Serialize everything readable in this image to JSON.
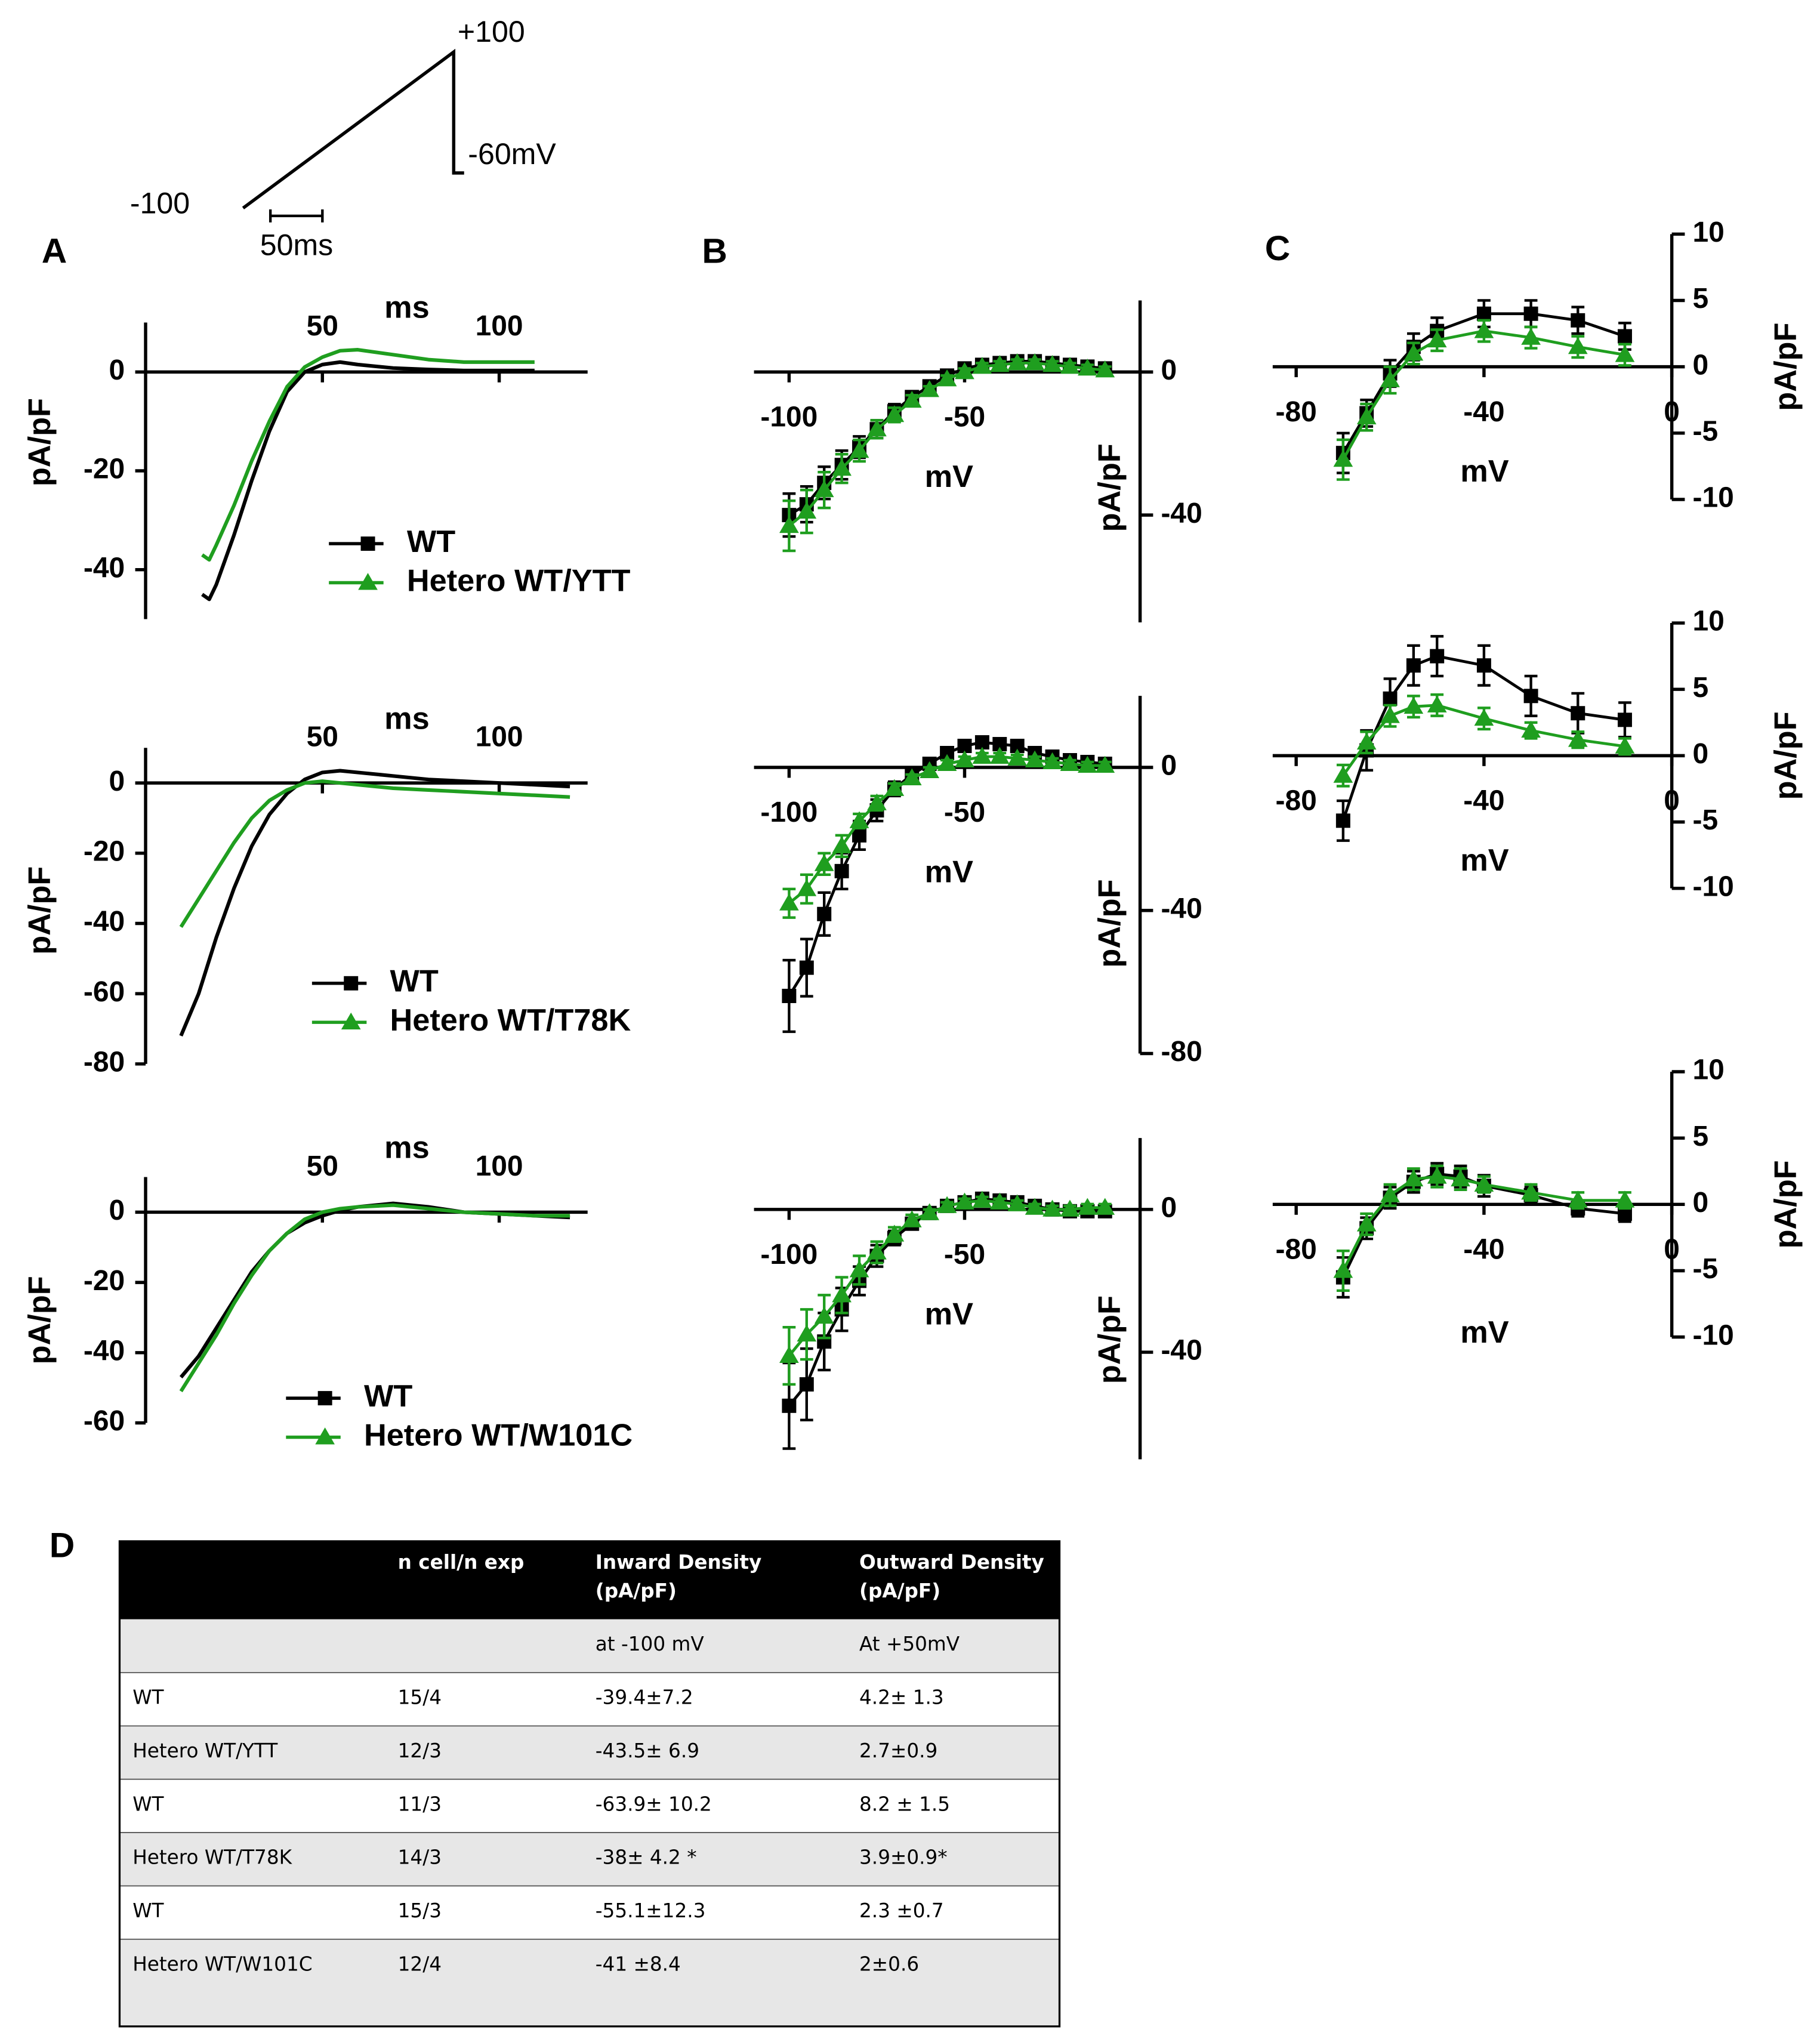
{
  "panels": [
    "A",
    "B",
    "C",
    "D"
  ],
  "protocol": {
    "start_label": "-100",
    "peak_label": "+100",
    "end_label": "-60mV",
    "scale_label": "50ms"
  },
  "chart_data": [
    {
      "type": "line",
      "x_label": "ms",
      "y_label": "pA/pF",
      "xlim": [
        0,
        125
      ],
      "xticks": [
        50,
        100
      ],
      "ylim": [
        -50,
        10
      ],
      "yticks": [
        0,
        -20,
        -40
      ],
      "legend": "lower right",
      "x": [
        16,
        18,
        20,
        25,
        30,
        35,
        40,
        45,
        50,
        55,
        60,
        70,
        80,
        90,
        100,
        110
      ],
      "series": [
        {
          "name": "WT",
          "color": "#000000",
          "marker": "square",
          "values": [
            -45,
            -46,
            -43,
            -33,
            -22,
            -12,
            -4,
            0,
            1.5,
            2,
            1.5,
            0.8,
            0.5,
            0.3,
            0.3,
            0.3
          ]
        },
        {
          "name": "Hetero WT/YTT",
          "color": "#1f9e1f",
          "marker": "triangle",
          "values": [
            -37,
            -38,
            -35,
            -27,
            -18,
            -10,
            -3,
            1,
            3,
            4.3,
            4.5,
            3.5,
            2.5,
            2,
            2,
            2
          ]
        }
      ]
    },
    {
      "type": "line",
      "x_label": "ms",
      "y_label": "pA/pF",
      "xlim": [
        0,
        125
      ],
      "xticks": [
        50,
        100
      ],
      "ylim": [
        -80,
        10
      ],
      "yticks": [
        0,
        -20,
        -40,
        -60,
        -80
      ],
      "legend": "lower right",
      "x": [
        10,
        15,
        20,
        25,
        30,
        35,
        40,
        45,
        50,
        55,
        60,
        70,
        80,
        90,
        100,
        110,
        120
      ],
      "series": [
        {
          "name": "WT",
          "color": "#000000",
          "marker": "square",
          "values": [
            -72,
            -60,
            -44,
            -30,
            -18,
            -9,
            -3,
            1,
            3,
            3.5,
            3,
            2,
            1,
            0.5,
            0,
            -0.5,
            -1
          ]
        },
        {
          "name": "Hetero WT/T78K",
          "color": "#1f9e1f",
          "marker": "triangle",
          "values": [
            -41,
            -33,
            -25,
            -17,
            -10,
            -5,
            -2,
            0,
            0.5,
            0,
            -0.5,
            -1.5,
            -2,
            -2.5,
            -3,
            -3.5,
            -4
          ]
        }
      ]
    },
    {
      "type": "line",
      "x_label": "ms",
      "y_label": "pA/pF",
      "xlim": [
        0,
        125
      ],
      "xticks": [
        50,
        100
      ],
      "ylim": [
        -60,
        10
      ],
      "yticks": [
        0,
        -20,
        -40,
        -60
      ],
      "legend": "lower right",
      "x": [
        10,
        15,
        20,
        25,
        30,
        35,
        40,
        45,
        50,
        55,
        60,
        70,
        80,
        90,
        100,
        110,
        120
      ],
      "series": [
        {
          "name": "WT",
          "color": "#000000",
          "marker": "square",
          "values": [
            -47,
            -41,
            -33,
            -25,
            -17,
            -11,
            -6,
            -3,
            -1,
            0.5,
            1.5,
            2.5,
            1.5,
            0,
            -0.5,
            -1,
            -1.5
          ]
        },
        {
          "name": "Hetero WT/W101C",
          "color": "#1f9e1f",
          "marker": "triangle",
          "values": [
            -51,
            -43,
            -35,
            -26,
            -18,
            -11,
            -6,
            -2,
            0,
            1,
            1.5,
            2,
            1,
            0,
            -0.5,
            -1,
            -1
          ]
        }
      ]
    },
    {
      "type": "line",
      "x_label": "mV",
      "y_label": "pA/pF",
      "y_axis_side": "right",
      "xlim": [
        -110,
        0
      ],
      "xticks": [
        -100,
        -50
      ],
      "ylim": [
        -70,
        20
      ],
      "yticks": [
        0,
        -40
      ],
      "x": [
        -100,
        -95,
        -90,
        -85,
        -80,
        -75,
        -70,
        -65,
        -60,
        -55,
        -50,
        -45,
        -40,
        -35,
        -30,
        -25,
        -20,
        -15,
        -10
      ],
      "series": [
        {
          "name": "WT",
          "color": "#000000",
          "marker": "square",
          "values": [
            -40,
            -37,
            -31,
            -26,
            -21,
            -16,
            -11,
            -7,
            -4,
            -1,
            1,
            2,
            2.5,
            3,
            3,
            2.5,
            2,
            1.5,
            1
          ],
          "errors": [
            6,
            5,
            4.5,
            4,
            3,
            2.5,
            2,
            1.5,
            1.5,
            1,
            1,
            1,
            1,
            1,
            1,
            1,
            1,
            1,
            1
          ]
        },
        {
          "name": "Hetero WT/YTT",
          "color": "#1f9e1f",
          "marker": "triangle",
          "values": [
            -43,
            -39,
            -33,
            -27,
            -22,
            -16,
            -12,
            -8,
            -5,
            -2,
            0,
            1.5,
            2,
            2.5,
            2.5,
            2,
            1.5,
            1,
            0.5
          ],
          "errors": [
            7,
            6,
            5,
            4,
            3,
            2.5,
            2,
            1.5,
            1,
            1,
            1,
            1,
            1,
            1,
            1,
            1,
            1,
            1,
            1
          ]
        }
      ]
    },
    {
      "type": "line",
      "x_label": "mV",
      "y_label": "pA/pF",
      "y_axis_side": "right",
      "xlim": [
        -110,
        0
      ],
      "xticks": [
        -100,
        -50
      ],
      "ylim": [
        -80,
        20
      ],
      "yticks": [
        0,
        -40,
        -80
      ],
      "x": [
        -100,
        -95,
        -90,
        -85,
        -80,
        -75,
        -70,
        -65,
        -60,
        -55,
        -50,
        -45,
        -40,
        -35,
        -30,
        -25,
        -20,
        -15,
        -10
      ],
      "series": [
        {
          "name": "WT",
          "color": "#000000",
          "marker": "square",
          "values": [
            -63.9,
            -56,
            -41,
            -29,
            -19,
            -12,
            -6,
            -2,
            1,
            4,
            6,
            7,
            6.5,
            6,
            4,
            3,
            2,
            1.5,
            1
          ],
          "errors": [
            10,
            8,
            6,
            5,
            4,
            3,
            2,
            2,
            1.5,
            1.5,
            1.5,
            1.5,
            1.5,
            1.5,
            1.5,
            1.5,
            1,
            1,
            1
          ]
        },
        {
          "name": "Hetero WT/T78K",
          "color": "#1f9e1f",
          "marker": "triangle",
          "values": [
            -38,
            -34,
            -27,
            -22,
            -15,
            -10,
            -6,
            -3,
            -1,
            1,
            2,
            3,
            3,
            2.5,
            2,
            1.5,
            1,
            0.5,
            0.5
          ],
          "errors": [
            4,
            4,
            3,
            3,
            2,
            2,
            1.5,
            1,
            1,
            1,
            1,
            1,
            1,
            1,
            1,
            1,
            1,
            1,
            1
          ]
        }
      ]
    },
    {
      "type": "line",
      "x_label": "mV",
      "y_label": "pA/pF",
      "y_axis_side": "right",
      "xlim": [
        -110,
        0
      ],
      "xticks": [
        -100,
        -50
      ],
      "ylim": [
        -70,
        20
      ],
      "yticks": [
        0,
        -40
      ],
      "x": [
        -100,
        -95,
        -90,
        -85,
        -80,
        -75,
        -70,
        -65,
        -60,
        -55,
        -50,
        -45,
        -40,
        -35,
        -30,
        -25,
        -20,
        -15,
        -10
      ],
      "series": [
        {
          "name": "WT",
          "color": "#000000",
          "marker": "square",
          "values": [
            -55,
            -49,
            -37,
            -28,
            -20,
            -13,
            -8,
            -4,
            -1,
            1,
            2,
            3,
            2.5,
            2,
            1,
            0,
            -0.5,
            -0.5,
            -0.5
          ],
          "errors": [
            12,
            10,
            8,
            6,
            4,
            3,
            2,
            1.5,
            1,
            1,
            1,
            1,
            1,
            1,
            1,
            1,
            1,
            1,
            1
          ]
        },
        {
          "name": "Hetero WT/W101C",
          "color": "#1f9e1f",
          "marker": "triangle",
          "values": [
            -41,
            -35,
            -30,
            -24,
            -17,
            -12,
            -7,
            -3,
            -1,
            1,
            2,
            2.5,
            2,
            1.5,
            0.5,
            0,
            0,
            0.5,
            0.5
          ],
          "errors": [
            8,
            7,
            6,
            5,
            4,
            3,
            2,
            1.5,
            1,
            1,
            1,
            1,
            1,
            1,
            1,
            1,
            1,
            1,
            1
          ]
        }
      ]
    },
    {
      "type": "line",
      "x_label": "mV",
      "y_label": "pA/pF",
      "y_axis_side": "right",
      "xlim": [
        -85,
        0
      ],
      "xticks": [
        -80,
        -40,
        0
      ],
      "ylim": [
        -10,
        10
      ],
      "yticks": [
        10,
        5,
        0,
        -5,
        -10
      ],
      "x": [
        -70,
        -65,
        -60,
        -55,
        -50,
        -40,
        -30,
        -20,
        -10
      ],
      "series": [
        {
          "name": "WT",
          "color": "#000000",
          "marker": "square",
          "values": [
            -6.5,
            -3.5,
            -0.5,
            1.5,
            2.7,
            4,
            4,
            3.5,
            2.3
          ],
          "errors": [
            1.5,
            1,
            1,
            1,
            1,
            1,
            1,
            1,
            1
          ]
        },
        {
          "name": "Hetero WT/YTT",
          "color": "#1f9e1f",
          "marker": "triangle",
          "values": [
            -7,
            -3.8,
            -1,
            1,
            2,
            2.7,
            2.2,
            1.5,
            0.9
          ],
          "errors": [
            1.5,
            1,
            1,
            0.8,
            0.8,
            0.8,
            0.8,
            0.8,
            0.8
          ]
        }
      ]
    },
    {
      "type": "line",
      "x_label": "mV",
      "y_label": "pA/pF",
      "y_axis_side": "right",
      "xlim": [
        -85,
        0
      ],
      "xticks": [
        -80,
        -40,
        0
      ],
      "ylim": [
        -10,
        10
      ],
      "yticks": [
        10,
        5,
        0,
        -5,
        -10
      ],
      "x": [
        -70,
        -65,
        -60,
        -55,
        -50,
        -40,
        -30,
        -20,
        -10
      ],
      "series": [
        {
          "name": "WT",
          "color": "#000000",
          "marker": "square",
          "values": [
            -4.9,
            0.4,
            4.3,
            6.8,
            7.5,
            6.8,
            4.5,
            3.2,
            2.7
          ],
          "errors": [
            1.5,
            1.5,
            1.5,
            1.5,
            1.5,
            1.5,
            1.5,
            1.5,
            1.3
          ]
        },
        {
          "name": "Hetero WT/T78K",
          "color": "#1f9e1f",
          "marker": "triangle",
          "values": [
            -1.5,
            1,
            3,
            3.7,
            3.8,
            2.8,
            1.9,
            1.2,
            0.7
          ],
          "errors": [
            0.8,
            0.8,
            0.8,
            0.8,
            0.8,
            0.8,
            0.6,
            0.6,
            0.6
          ]
        }
      ]
    },
    {
      "type": "line",
      "x_label": "mV",
      "y_label": "pA/pF",
      "y_axis_side": "right",
      "xlim": [
        -85,
        0
      ],
      "xticks": [
        -80,
        -40,
        0
      ],
      "ylim": [
        -10,
        10
      ],
      "yticks": [
        10,
        5,
        0,
        -5,
        -10
      ],
      "x": [
        -70,
        -65,
        -60,
        -55,
        -50,
        -45,
        -40,
        -30,
        -20,
        -10
      ],
      "series": [
        {
          "name": "WT",
          "color": "#000000",
          "marker": "square",
          "values": [
            -5.5,
            -1.8,
            0.5,
            1.7,
            2.3,
            2.1,
            1.4,
            0.7,
            -0.3,
            -0.7
          ],
          "errors": [
            1.5,
            0.8,
            0.8,
            0.8,
            0.8,
            0.8,
            0.8,
            0.6,
            0.6,
            0.6
          ]
        },
        {
          "name": "Hetero WT/W101C",
          "color": "#1f9e1f",
          "marker": "triangle",
          "values": [
            -5,
            -1.5,
            0.7,
            1.9,
            2.1,
            1.9,
            1.5,
            0.9,
            0.3,
            0.3
          ],
          "errors": [
            1.5,
            0.8,
            0.8,
            0.8,
            0.8,
            0.8,
            0.6,
            0.6,
            0.6,
            0.6
          ]
        }
      ]
    }
  ],
  "table": {
    "columns": [
      [
        "n cell/n exp"
      ],
      [
        "Inward Density",
        "(pA/pF)"
      ],
      [
        "Outward Density",
        "(pA/pF)"
      ]
    ],
    "units": [
      "at -100 mV",
      "At +50mV"
    ],
    "rows": [
      [
        "WT",
        "15/4",
        "-39.4±7.2",
        "4.2± 1.3"
      ],
      [
        "Hetero WT/YTT",
        "12/3",
        "-43.5± 6.9",
        "2.7±0.9"
      ],
      [
        "WT",
        "11/3",
        "-63.9± 10.2",
        "8.2 ± 1.5"
      ],
      [
        "Hetero WT/T78K",
        "14/3",
        "-38± 4.2 *",
        "3.9±0.9*"
      ],
      [
        "WT",
        "15/3",
        "-55.1±12.3",
        "2.3 ±0.7"
      ],
      [
        "Hetero WT/W101C",
        "12/4",
        "-41 ±8.4",
        "2±0.6"
      ]
    ]
  }
}
